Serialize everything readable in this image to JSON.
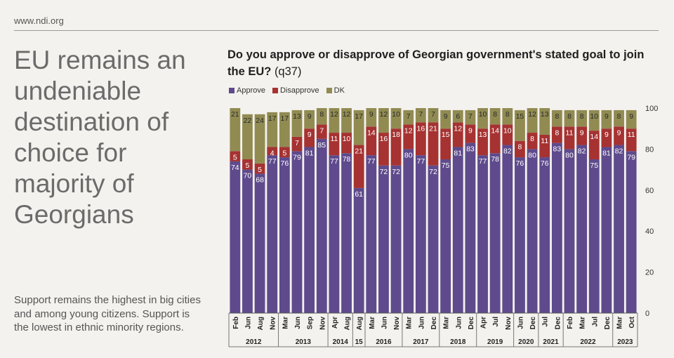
{
  "site": "www.ndi.org",
  "headline": "EU remains an undeniable destination of choice for majority of Georgians",
  "subtext": "Support remains the highest in big cities and among young citizens. Support is the lowest in ethnic minority regions.",
  "chart_data": {
    "type": "bar",
    "stacked": true,
    "title": "Do you approve or disapprove of Georgian government's stated goal to join the EU?",
    "title_code": "(q37)",
    "legend_position": "top-left",
    "y_axis_side": "right",
    "ylim": [
      0,
      100
    ],
    "yticks": [
      0,
      20,
      40,
      60,
      80,
      100
    ],
    "categories": [
      "Feb",
      "Jun",
      "Aug",
      "Nov",
      "Mar",
      "Jun",
      "Sep",
      "Nov",
      "Apr",
      "Aug",
      "Aug",
      "Mar",
      "Jun",
      "Nov",
      "Mar",
      "Jun",
      "Dec",
      "Mar",
      "Jun",
      "Dec",
      "Apr",
      "Jul",
      "Nov",
      "Jun",
      "Dec",
      "Jul",
      "Dec",
      "Feb",
      "Mar",
      "Jul",
      "Dec",
      "Mar",
      "Oct"
    ],
    "year_groups": [
      {
        "label": "2012",
        "count": 4
      },
      {
        "label": "2013",
        "count": 4
      },
      {
        "label": "2014",
        "count": 2
      },
      {
        "label": "15",
        "count": 1
      },
      {
        "label": "2016",
        "count": 3
      },
      {
        "label": "2017",
        "count": 3
      },
      {
        "label": "2018",
        "count": 3
      },
      {
        "label": "2019",
        "count": 3
      },
      {
        "label": "2020",
        "count": 2
      },
      {
        "label": "2021",
        "count": 2
      },
      {
        "label": "2022",
        "count": 4
      },
      {
        "label": "2023",
        "count": 2
      }
    ],
    "series": [
      {
        "name": "Approve",
        "color": "#5e4a8c",
        "values": [
          74,
          70,
          68,
          77,
          76,
          79,
          81,
          85,
          77,
          78,
          61,
          77,
          72,
          72,
          80,
          77,
          72,
          75,
          81,
          83,
          77,
          78,
          82,
          76,
          80,
          76,
          83,
          80,
          82,
          75,
          81,
          82,
          79
        ]
      },
      {
        "name": "Disapprove",
        "color": "#a63232",
        "values": [
          5,
          5,
          5,
          4,
          5,
          7,
          9,
          7,
          11,
          10,
          21,
          14,
          16,
          18,
          12,
          16,
          21,
          15,
          12,
          9,
          13,
          14,
          10,
          8,
          8,
          11,
          8,
          11,
          9,
          14,
          9,
          9,
          11
        ]
      },
      {
        "name": "DK",
        "color": "#918b52",
        "values": [
          21,
          22,
          24,
          17,
          17,
          13,
          9,
          8,
          12,
          12,
          17,
          9,
          12,
          10,
          7,
          7,
          7,
          9,
          6,
          7,
          10,
          8,
          8,
          15,
          12,
          13,
          8,
          8,
          8,
          10,
          9,
          8,
          9
        ]
      }
    ]
  }
}
